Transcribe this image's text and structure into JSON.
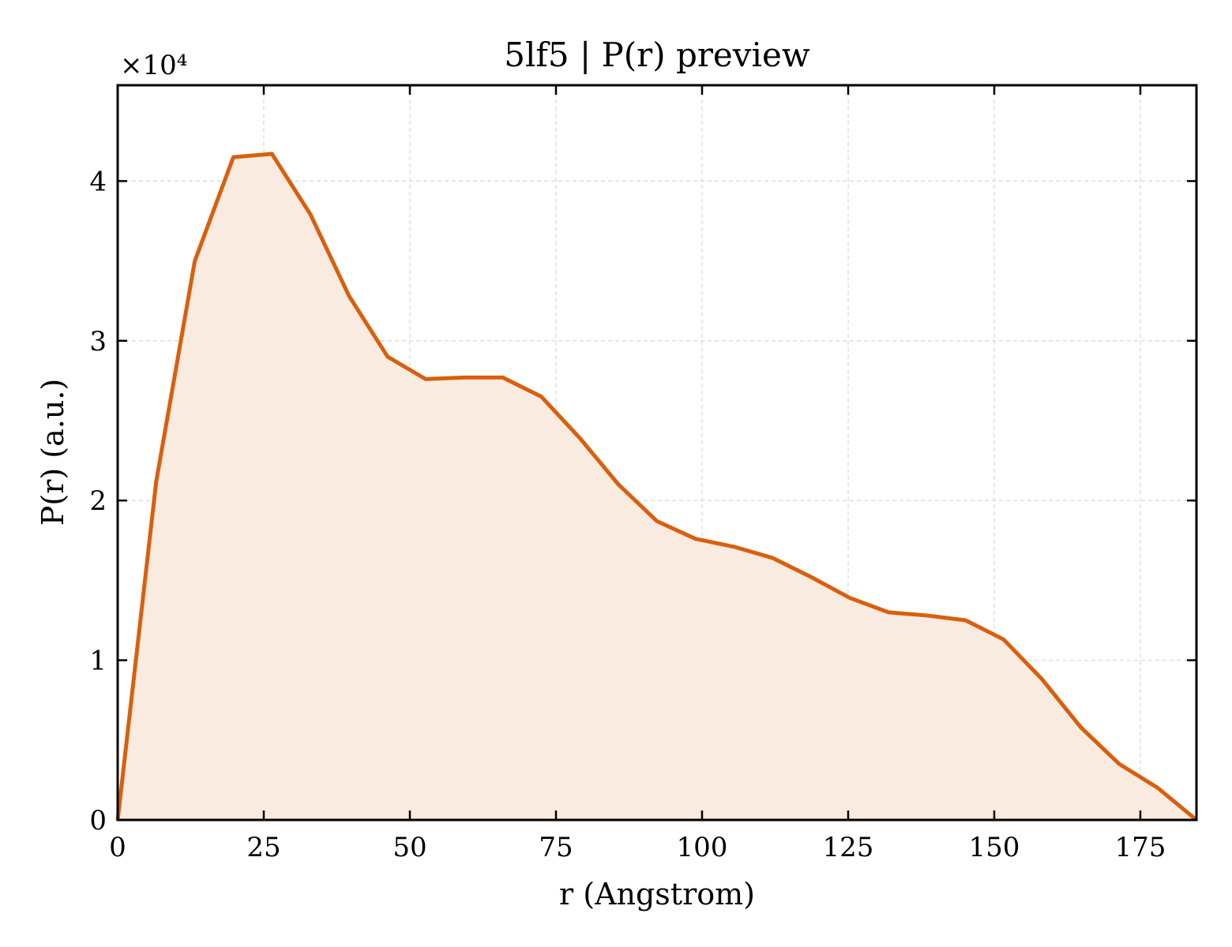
{
  "chart_data": {
    "type": "area",
    "title": "5lf5 | P(r) preview",
    "xlabel": "r (Angstrom)",
    "ylabel": "P(r) (a.u.)",
    "y_offset_label": "×10⁴",
    "xlim": [
      0,
      184.6
    ],
    "ylim": [
      0,
      46000
    ],
    "x_ticks": [
      0,
      25,
      50,
      75,
      100,
      125,
      150,
      175
    ],
    "y_ticks": [
      0,
      10000,
      20000,
      30000,
      40000
    ],
    "y_tick_labels": [
      "0",
      "1",
      "2",
      "3",
      "4"
    ],
    "grid": true,
    "series": [
      {
        "x": [
          0,
          6.6,
          13.2,
          19.8,
          26.4,
          33.0,
          39.6,
          46.2,
          52.7,
          59.3,
          65.9,
          72.5,
          79.1,
          85.7,
          92.3,
          98.9,
          105.5,
          112.1,
          118.7,
          125.3,
          131.9,
          138.5,
          145.1,
          151.6,
          158.2,
          164.8,
          171.4,
          178.0,
          184.6
        ],
        "y": [
          0,
          21200,
          35000,
          41500,
          41700,
          37900,
          32800,
          29000,
          27600,
          27700,
          27700,
          26500,
          23900,
          21000,
          18700,
          17600,
          17100,
          16400,
          15200,
          13900,
          13000,
          12800,
          12500,
          11300,
          8800,
          5800,
          3500,
          2000,
          0
        ]
      }
    ],
    "colors": {
      "line": "#d95f0e",
      "fill": "#f9ebe0",
      "grid": "#d9d9d9",
      "axis": "#000000"
    }
  }
}
